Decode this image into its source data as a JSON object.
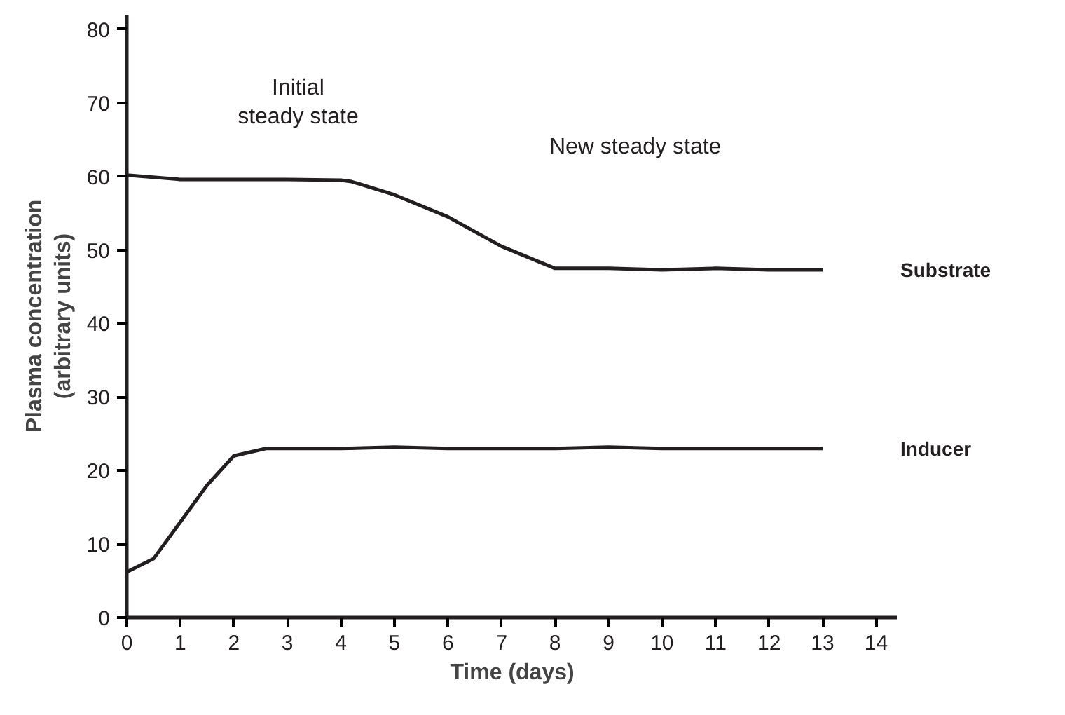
{
  "chart_data": {
    "type": "line",
    "xlabel": "Time (days)",
    "ylabel": "Plasma concentration\n(arbitrary units)",
    "xlim": [
      0,
      14.4
    ],
    "ylim": [
      0,
      82
    ],
    "xticks": [
      0,
      1,
      2,
      3,
      4,
      5,
      6,
      7,
      8,
      9,
      10,
      11,
      12,
      13,
      14
    ],
    "yticks": [
      0,
      10,
      20,
      30,
      40,
      50,
      60,
      70,
      80
    ],
    "grid": false,
    "legend": false,
    "marker": "none",
    "line_style": "solid",
    "series": [
      {
        "name": "Substrate",
        "color": "#231f20",
        "x": [
          0,
          1,
          2,
          3,
          4,
          4.2,
          5,
          6,
          7,
          8,
          9,
          10,
          11,
          12,
          13
        ],
        "values": [
          60.2,
          59.6,
          59.6,
          59.6,
          59.5,
          59.3,
          57.5,
          54.5,
          50.5,
          47.5,
          47.5,
          47.3,
          47.5,
          47.3,
          47.3
        ]
      },
      {
        "name": "Inducer",
        "color": "#231f20",
        "x": [
          0,
          0.5,
          1,
          1.5,
          2,
          2.6,
          3,
          4,
          5,
          6,
          7,
          8,
          9,
          10,
          11,
          12,
          13
        ],
        "values": [
          6.2,
          8,
          13,
          18,
          22,
          23,
          23,
          23,
          23.2,
          23,
          23,
          23,
          23.2,
          23,
          23,
          23,
          23
        ]
      }
    ],
    "annotations": [
      "Initial\nsteady state",
      "New steady state"
    ]
  }
}
